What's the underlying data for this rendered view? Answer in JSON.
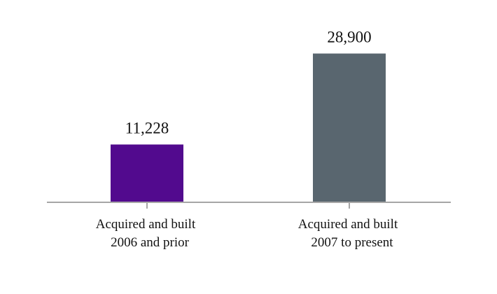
{
  "chart_data": {
    "type": "bar",
    "categories": [
      [
        "Acquired and built",
        "2006 and prior"
      ],
      [
        "Acquired and built",
        "2007 to present"
      ]
    ],
    "values": [
      11228,
      28900
    ],
    "value_labels": [
      "11,228",
      "28,900"
    ],
    "bar_colors": [
      "#520a8e",
      "#59666f"
    ],
    "axis_color": "#a6a6a6",
    "ylim": [
      0,
      32500
    ],
    "title": "",
    "xlabel": "",
    "ylabel": "",
    "grid": false,
    "legend": "none"
  }
}
